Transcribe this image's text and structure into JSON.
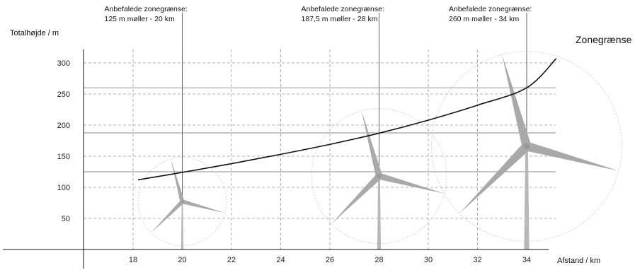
{
  "chart_data": {
    "type": "line",
    "ylabel": "Totalhøjde / m",
    "xlabel": "Afstand / km",
    "xlim": [
      16,
      36
    ],
    "ylim": [
      0,
      300
    ],
    "x_ticks": [
      18,
      20,
      22,
      24,
      26,
      28,
      30,
      32,
      34
    ],
    "y_ticks": [
      50,
      100,
      150,
      200,
      250,
      300
    ],
    "grid": true,
    "series": [
      {
        "name": "Zonegrænse",
        "x": [
          18.2,
          20,
          22,
          24,
          26,
          28,
          30,
          32,
          34,
          35.2
        ],
        "y": [
          112,
          124,
          138,
          153,
          169,
          187,
          208,
          232,
          260,
          307
        ]
      }
    ],
    "recommendations": [
      {
        "title": "Anbefalede zonegrænse:",
        "detail": "125 m møller - 20 km",
        "x": 20,
        "height": 125
      },
      {
        "title": "Anbefalede zonegrænse:",
        "detail": "187,5 m møller - 28 km",
        "x": 28,
        "height": 187.5
      },
      {
        "title": "Anbefalede zonegrænse:",
        "detail": "260 m møller - 34 km",
        "x": 34,
        "height": 260
      }
    ],
    "turbines": [
      {
        "x": 20,
        "hub": 77
      },
      {
        "x": 28,
        "hub": 118
      },
      {
        "x": 34,
        "hub": 166
      }
    ]
  }
}
